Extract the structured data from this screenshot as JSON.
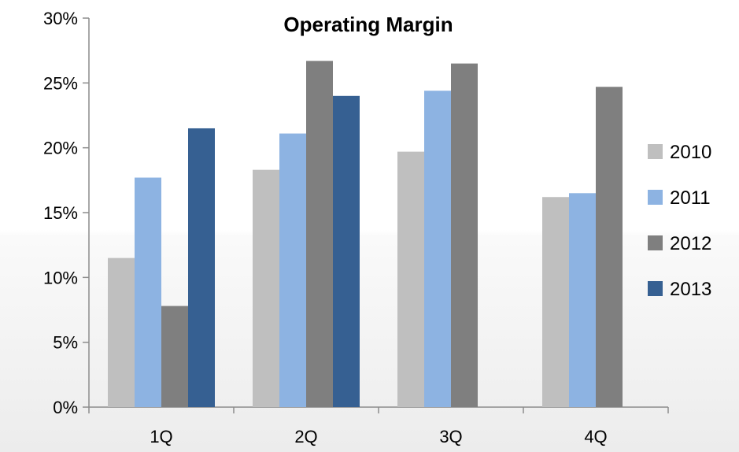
{
  "chart_data": {
    "type": "bar",
    "title": "Operating Margin",
    "xlabel": "",
    "ylabel": "",
    "categories": [
      "1Q",
      "2Q",
      "3Q",
      "4Q"
    ],
    "ylim": [
      0,
      30
    ],
    "yticks": [
      0,
      5,
      10,
      15,
      20,
      25,
      30
    ],
    "ytick_labels": [
      "0%",
      "5%",
      "10%",
      "15%",
      "20%",
      "25%",
      "30%"
    ],
    "grid": false,
    "legend_position": "right",
    "series": [
      {
        "name": "2010",
        "color": "#bfbfbf",
        "values": [
          11.5,
          18.3,
          19.7,
          16.2
        ]
      },
      {
        "name": "2011",
        "color": "#8db3e2",
        "values": [
          17.7,
          21.1,
          24.4,
          16.5
        ]
      },
      {
        "name": "2012",
        "color": "#7f7f7f",
        "values": [
          7.8,
          26.7,
          26.5,
          24.7
        ]
      },
      {
        "name": "2013",
        "color": "#366092",
        "values": [
          21.5,
          24.0,
          null,
          null
        ]
      }
    ]
  }
}
